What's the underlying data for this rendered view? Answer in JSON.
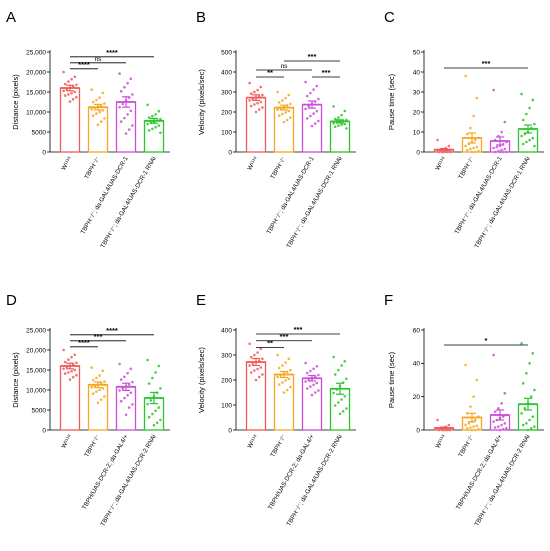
{
  "colors": [
    "#f05a5a",
    "#f5a623",
    "#c94fd6",
    "#2bc42b"
  ],
  "chart_data": [
    {
      "type": "bar",
      "letter": "A",
      "ylabel": "Distance (pixels)",
      "ylim": [
        0,
        25000
      ],
      "yticks": [
        "0",
        "5000",
        "10,000",
        "15,000",
        "20,000",
        "25,000"
      ],
      "categories": [
        "W¹¹¹⁸",
        "TBPH⁻/⁻",
        "TBPH⁻/⁻; da-GAL4/UAS-DCR-1",
        "TBPH⁻/⁻; da-GAL4/UAS-DCR-1 RNAi"
      ],
      "values": [
        16000,
        11200,
        12500,
        7800
      ],
      "errors": [
        700,
        700,
        1300,
        600
      ],
      "points": [
        [
          20000,
          18800,
          18200,
          17600,
          17000,
          16800,
          16400,
          16000,
          15700,
          15300,
          15000,
          14700,
          14400,
          14100,
          13700,
          13200,
          12600
        ],
        [
          15600,
          14800,
          13600,
          13000,
          12500,
          12100,
          11700,
          11300,
          11000,
          10700,
          10400,
          10000,
          9600,
          9100,
          8400,
          7600,
          6800
        ],
        [
          19600,
          18300,
          17200,
          16200,
          15200,
          14400,
          13600,
          12800,
          12000,
          11200,
          10300,
          9400,
          8500,
          7600,
          6600,
          5600,
          4600
        ],
        [
          11800,
          10200,
          9400,
          9000,
          8600,
          8200,
          7900,
          7600,
          7300,
          7000,
          6600,
          6200,
          5800,
          5400,
          4800
        ]
      ],
      "comparisons": [
        {
          "from": 0,
          "to": 1,
          "label": "****",
          "y": 20800
        },
        {
          "from": 0,
          "to": 2,
          "label": "ns",
          "y": 22300
        },
        {
          "from": 0,
          "to": 3,
          "label": "****",
          "y": 23800
        }
      ]
    },
    {
      "type": "bar",
      "letter": "B",
      "ylabel": "Velocity (pixels/sec)",
      "ylim": [
        0,
        500
      ],
      "yticks": [
        "0",
        "100",
        "200",
        "300",
        "400",
        "500"
      ],
      "categories": [
        "W¹¹¹⁸",
        "TBPH⁻/⁻",
        "TBPH⁻/⁻; da-GAL4/UAS-DCR-1",
        "TBPH⁻/⁻; da-GAL4/UAS-DCR-1 RNAi"
      ],
      "values": [
        272,
        222,
        237,
        153
      ],
      "errors": [
        14,
        12,
        18,
        8
      ],
      "points": [
        [
          345,
          325,
          310,
          300,
          292,
          285,
          278,
          272,
          265,
          258,
          250,
          244,
          238,
          230,
          222,
          212,
          200
        ],
        [
          300,
          285,
          270,
          258,
          248,
          240,
          232,
          225,
          218,
          212,
          205,
          198,
          190,
          182,
          172,
          160,
          150
        ],
        [
          350,
          330,
          312,
          295,
          280,
          265,
          252,
          240,
          228,
          216,
          204,
          192,
          180,
          168,
          155,
          142,
          130
        ],
        [
          228,
          205,
          185,
          172,
          165,
          160,
          156,
          152,
          148,
          144,
          140,
          136,
          132,
          126,
          118
        ]
      ],
      "comparisons": [
        {
          "from": 0,
          "to": 1,
          "label": "**",
          "y": 375
        },
        {
          "from": 0,
          "to": 2,
          "label": "ns",
          "y": 410
        },
        {
          "from": 2,
          "to": 3,
          "label": "***",
          "y": 375
        },
        {
          "from": 1,
          "to": 3,
          "label": "***",
          "y": 455
        }
      ]
    },
    {
      "type": "bar",
      "letter": "C",
      "ylabel": "Pause time (sec)",
      "ylim": [
        0,
        50
      ],
      "yticks": [
        "0",
        "10",
        "20",
        "30",
        "40",
        "50"
      ],
      "categories": [
        "W¹¹¹⁸",
        "TBPH⁻/⁻",
        "TBPH⁻/⁻; da-GAL4/UAS-DCR-1",
        "TBPH⁻/⁻; da-GAL4/UAS-DCR-1 RNAi"
      ],
      "values": [
        1.2,
        7.0,
        5.5,
        11.5
      ],
      "errors": [
        0.5,
        2.5,
        2.0,
        2.0
      ],
      "points": [
        [
          6,
          3,
          2,
          1.5,
          1,
          1,
          0.8,
          0.5,
          0.5,
          0.3,
          0.2,
          0.1,
          0,
          0,
          0,
          0,
          0
        ],
        [
          38,
          27,
          18,
          12,
          9,
          7,
          6,
          5,
          4,
          3,
          2.5,
          2,
          1.5,
          1,
          0.5,
          0,
          0
        ],
        [
          31,
          15,
          10,
          8,
          6,
          5,
          4,
          3,
          2.5,
          2,
          1.5,
          1,
          0.5,
          0,
          0,
          0,
          0
        ],
        [
          29,
          26,
          22,
          19,
          16,
          14,
          12,
          10,
          9,
          8,
          7,
          6,
          5,
          4,
          3
        ]
      ],
      "comparisons": [
        {
          "from": 0,
          "to": 3,
          "label": "***",
          "y": 42
        }
      ]
    },
    {
      "type": "bar",
      "letter": "D",
      "ylabel": "Distance (pixels)",
      "ylim": [
        0,
        25000
      ],
      "yticks": [
        "0",
        "5000",
        "10,000",
        "15,000",
        "20,000",
        "25,000"
      ],
      "categories": [
        "W¹¹¹⁸",
        "TBPH⁻/⁻",
        "TBPH/UAS-DCR-2; da-GAL4/+",
        "TBPH⁻/⁻; da-GAL4/UAS-DCR-2 RNAi"
      ],
      "values": [
        16000,
        11300,
        10800,
        8000
      ],
      "errors": [
        700,
        700,
        900,
        1400
      ],
      "points": [
        [
          20000,
          18800,
          18200,
          17600,
          17000,
          16800,
          16400,
          16000,
          15700,
          15300,
          15000,
          14700,
          14400,
          14100,
          13700,
          13200,
          12600
        ],
        [
          15600,
          14800,
          13600,
          13000,
          12500,
          12100,
          11700,
          11300,
          11000,
          10700,
          10400,
          10000,
          9600,
          9100,
          8400,
          7600,
          6800
        ],
        [
          16500,
          15300,
          14200,
          13300,
          12600,
          12000,
          11400,
          10900,
          10400,
          9900,
          9300,
          8700,
          8000,
          7200,
          6400,
          5600,
          3800
        ],
        [
          17500,
          16000,
          14400,
          13000,
          11600,
          10400,
          9300,
          8300,
          7400,
          6500,
          5600,
          4800,
          4000,
          3200,
          2500,
          1800,
          1200
        ]
      ],
      "comparisons": [
        {
          "from": 0,
          "to": 1,
          "label": "****",
          "y": 20800
        },
        {
          "from": 0,
          "to": 2,
          "label": "***",
          "y": 22300
        },
        {
          "from": 0,
          "to": 3,
          "label": "****",
          "y": 23800
        }
      ]
    },
    {
      "type": "bar",
      "letter": "E",
      "ylabel": "Velocity (pixels/sec)",
      "ylim": [
        0,
        400
      ],
      "yticks": [
        "0",
        "100",
        "200",
        "300",
        "400"
      ],
      "categories": [
        "W¹¹¹⁸",
        "TBPH⁻/⁻",
        "TBPH/UAS-DCR-2; da-GAL4/+",
        "TBPH⁻/⁻; da-GAL4/UAS-DCR-2 RNAi"
      ],
      "values": [
        272,
        222,
        207,
        165
      ],
      "errors": [
        14,
        12,
        11,
        22
      ],
      "points": [
        [
          345,
          325,
          310,
          300,
          292,
          285,
          278,
          272,
          265,
          258,
          250,
          244,
          238,
          230,
          222,
          212,
          200
        ],
        [
          300,
          285,
          270,
          258,
          248,
          240,
          232,
          225,
          218,
          212,
          205,
          198,
          190,
          182,
          172,
          160,
          150
        ],
        [
          268,
          255,
          245,
          236,
          228,
          220,
          213,
          206,
          200,
          194,
          188,
          181,
          174,
          166,
          158,
          150,
          140
        ],
        [
          292,
          275,
          258,
          240,
          222,
          205,
          190,
          176,
          162,
          148,
          135,
          122,
          110,
          98,
          86,
          75,
          65
        ]
      ],
      "comparisons": [
        {
          "from": 0,
          "to": 1,
          "label": "**",
          "y": 330
        },
        {
          "from": 0,
          "to": 2,
          "label": "***",
          "y": 357
        },
        {
          "from": 0,
          "to": 3,
          "label": "***",
          "y": 384
        }
      ]
    },
    {
      "type": "bar",
      "letter": "F",
      "ylabel": "Pause time (sec)",
      "ylim": [
        0,
        60
      ],
      "yticks": [
        "0",
        "20",
        "40",
        "60"
      ],
      "categories": [
        "W¹¹¹⁸",
        "TBPH⁻/⁻",
        "TBPH/UAS-DCR-2; da-GAL4/+",
        "TBPH⁻/⁻; da-GAL4/UAS-DCR-2 RNAi"
      ],
      "values": [
        1.2,
        7.5,
        9.0,
        15.5
      ],
      "errors": [
        0.5,
        2.5,
        3.0,
        3.5
      ],
      "points": [
        [
          6,
          3,
          2,
          1.5,
          1,
          1,
          0.8,
          0.5,
          0.5,
          0.3,
          0.2,
          0.1,
          0,
          0,
          0,
          0,
          0
        ],
        [
          39,
          30,
          20,
          14,
          10,
          8,
          6,
          5,
          4,
          3,
          2.5,
          2,
          1.5,
          1,
          0.5,
          0,
          0
        ],
        [
          45,
          22,
          16,
          13,
          11,
          9,
          8,
          7,
          6,
          5,
          4,
          3,
          2,
          1.5,
          1,
          0.5,
          0
        ],
        [
          52,
          46,
          40,
          34,
          28,
          24,
          20,
          16,
          13,
          10,
          8,
          6,
          4,
          3,
          2,
          1,
          0
        ]
      ],
      "comparisons": [
        {
          "from": 0,
          "to": 3,
          "label": "*",
          "y": 51
        }
      ]
    }
  ]
}
